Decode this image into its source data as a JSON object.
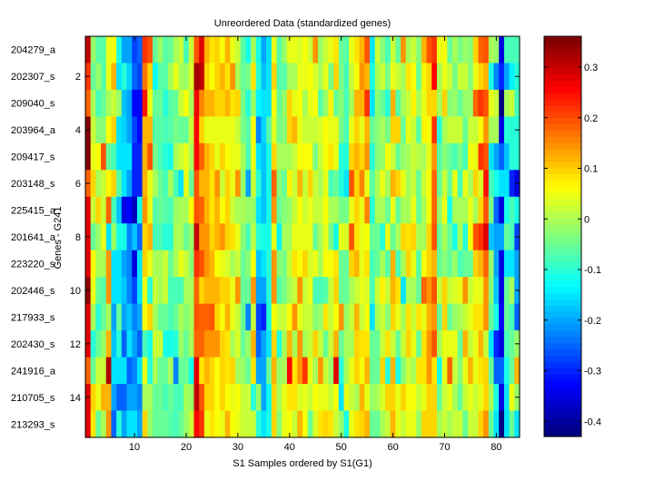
{
  "chart_data": {
    "type": "heatmap",
    "title": "Unreordered Data (standardized genes)",
    "xlabel": "S1 Samples ordered by S1(G1)",
    "ylabel": "Genes - G241",
    "xlim": [
      0.5,
      84.5
    ],
    "x_ticks": [
      10,
      20,
      30,
      40,
      50,
      60,
      70,
      80
    ],
    "y_ticks": [
      2,
      4,
      6,
      8,
      10,
      12,
      14
    ],
    "row_labels": [
      "204279_a",
      "202307_s",
      "209040_s",
      "203964_a",
      "209417_s",
      "203148_s",
      "225415_a",
      "201641_a",
      "223220_s",
      "202446_s",
      "217933_s",
      "202430_s",
      "241916_a",
      "210705_s",
      "213293_s"
    ],
    "colormap": "jet",
    "clim": [
      -0.43,
      0.361
    ],
    "colorbar_ticks": [
      0.3,
      0.2,
      0.1,
      0,
      -0.1,
      -0.2,
      -0.3,
      -0.4
    ],
    "colorbar_tick_labels": [
      "0.3",
      "0.2",
      "0.1",
      "0",
      "-0.1",
      "-0.2",
      "-0.3",
      "-0.4"
    ],
    "grid": false,
    "values": [
      [
        0.3,
        -0.02,
        -0.07,
        -0.07,
        0.04,
        0.06,
        -0.12,
        -0.2,
        -0.2,
        -0.28,
        -0.25,
        0.22,
        0.2,
        -0.05,
        -0.02,
        -0.07,
        -0.05,
        0,
        0.02,
        -0.08,
        0.02,
        0.2,
        0.28,
        0.12,
        0.08,
        0.1,
        0.06,
        0.12,
        0.04,
        0.02,
        -0.07,
        -0.12,
        0,
        -0.12,
        -0.2,
        -0.15,
        0.05,
        -0.06,
        -0.02,
        0.04,
        0.05,
        0.03,
        0.06,
        0.02,
        0.15,
        -0.02,
        0.02,
        0.05,
        0.08,
        -0.05,
        -0.06,
        0.04,
        0.08,
        0.12,
        0.2,
        -0.15,
        0.02,
        -0.03,
        -0.08,
        0.02,
        -0.05,
        0.14,
        0,
        0.02,
        -0.03,
        0.12,
        0.2,
        0.22,
        0.04,
        0.06,
        -0.05,
        0,
        -0.04,
        -0.02,
        -0.03,
        0.1,
        0.18,
        0.2,
        0,
        -0.02,
        -0.35,
        -0.08,
        -0.08,
        -0.08
      ],
      [
        0.22,
        -0.05,
        -0.02,
        -0.07,
        0.05,
        0.12,
        -0.15,
        -0.1,
        -0.17,
        -0.25,
        -0.28,
        0.17,
        0.1,
        -0.13,
        -0.06,
        -0.06,
        0,
        0.05,
        0,
        -0.02,
        0.03,
        0.33,
        0.3,
        0.1,
        0.06,
        0.1,
        0.12,
        0.08,
        0.15,
        0,
        -0.05,
        -0.04,
        0.08,
        -0.1,
        -0.18,
        -0.15,
        0.1,
        -0.06,
        -0.06,
        0,
        0,
        0.04,
        0.04,
        0.06,
        0.03,
        0,
        0.05,
        -0.04,
        0.1,
        -0.04,
        -0.08,
        0.02,
        0.06,
        0.14,
        0.12,
        -0.12,
        0,
        0.02,
        -0.04,
        0.05,
        0.02,
        0,
        0.08,
        0.06,
        -0.05,
        0.07,
        0.1,
        0.26,
        0,
        0.04,
        0.02,
        -0.04,
        0.02,
        0.02,
        -0.03,
        0.04,
        0.1,
        0.12,
        -0.12,
        -0.22,
        -0.3,
        -0.2,
        -0.14,
        -0.1
      ],
      [
        0.18,
        0,
        -0.08,
        -0.05,
        0,
        0.02,
        -0.02,
        -0.18,
        -0.2,
        -0.32,
        -0.32,
        0.24,
        0.05,
        -0.05,
        -0.05,
        -0.1,
        -0.06,
        -0.05,
        0.02,
        0.06,
        0,
        0.27,
        0.16,
        0.12,
        0.12,
        0.1,
        0.1,
        0.12,
        0.08,
        0.09,
        -0.04,
        -0.1,
        -0.02,
        -0.14,
        -0.15,
        -0.15,
        0.06,
        -0.05,
        -0.02,
        0.1,
        0.05,
        0.06,
        0,
        0.04,
        0.06,
        -0.06,
        -0.02,
        0.07,
        -0.05,
        -0.03,
        -0.08,
        0,
        0.12,
        0.12,
        0.22,
        -0.15,
        -0.03,
        -0.05,
        -0.1,
        0.12,
        -0.06,
        0,
        0.02,
        0.07,
        0,
        0.05,
        0.1,
        0.1,
        0,
        0.1,
        -0.03,
        -0.02,
        -0.05,
        -0.02,
        -0.02,
        0.18,
        0.22,
        0.2,
        0.04,
        0.02,
        -0.42,
        0,
        0.02,
        -0.08
      ],
      [
        0.36,
        0.02,
        -0.03,
        -0.03,
        0.06,
        0.1,
        -0.15,
        -0.17,
        -0.2,
        -0.28,
        -0.33,
        0.12,
        0.12,
        -0.06,
        -0.07,
        -0.08,
        -0.07,
        -0.04,
        -0.05,
        -0.05,
        0.02,
        0.25,
        0.1,
        0.04,
        0.04,
        0.05,
        0.04,
        0.04,
        0.05,
        0.02,
        -0.04,
        -0.06,
        0.06,
        -0.22,
        -0.17,
        -0.07,
        0.03,
        -0.04,
        -0.03,
        0.1,
        0.12,
        0.05,
        0.02,
        0.02,
        0.02,
        0.03,
        0.06,
        0.04,
        0.05,
        -0.04,
        -0.08,
        0.05,
        0.1,
        0.04,
        0.12,
        -0.05,
        -0.03,
        0,
        -0.04,
        0.1,
        0.1,
        -0.05,
        0.05,
        0.02,
        -0.06,
        0.07,
        0.06,
        0.22,
        -0.1,
        0,
        0.02,
        0.02,
        0.02,
        -0.05,
        0.02,
        0.02,
        0.06,
        0.14,
        0,
        0,
        -0.35,
        -0.1,
        -0.1,
        -0.1
      ],
      [
        0.35,
        0.04,
        0.06,
        0.2,
        -0.05,
        -0.08,
        -0.15,
        -0.15,
        -0.15,
        -0.3,
        -0.3,
        0.12,
        0.2,
        -0.04,
        -0.08,
        -0.1,
        -0.12,
        0,
        0.02,
        0.05,
        0,
        0.25,
        0.18,
        0.12,
        0.1,
        0.05,
        0.1,
        0.06,
        0.04,
        0.05,
        0,
        -0.08,
        0.05,
        -0.15,
        -0.18,
        -0.12,
        0.1,
        0,
        0,
        0,
        0.02,
        0.06,
        0.06,
        0.06,
        -0.04,
        0.02,
        0.06,
        0.08,
        0.05,
        -0.1,
        -0.1,
        0.1,
        0.12,
        0.1,
        0.15,
        -0.1,
        -0.03,
        -0.02,
        0.06,
        0.02,
        -0.05,
        -0.02,
        0,
        0.02,
        0.01,
        0,
        0.05,
        0.15,
        -0.06,
        -0.03,
        -0.05,
        -0.08,
        -0.04,
        -0.08,
        0.06,
        0.05,
        0.22,
        0.2,
        -0.15,
        -0.2,
        -0.25,
        -0.18,
        -0.1,
        -0.1
      ],
      [
        0.18,
        0.1,
        0,
        0.02,
        0.07,
        0.1,
        -0.07,
        -0.15,
        -0.2,
        -0.3,
        -0.3,
        0.12,
        0.05,
        0,
        -0.05,
        -0.08,
        0,
        -0.08,
        -0.15,
        0.04,
        -0.05,
        0.2,
        0.12,
        0.12,
        0.08,
        0.15,
        0.02,
        0.1,
        0.05,
        0.15,
        -0.02,
        -0.2,
        0.02,
        -0.1,
        -0.18,
        -0.12,
        0.18,
        -0.03,
        -0.05,
        0.07,
        0.02,
        0.12,
        0.02,
        0.1,
        0.02,
        0,
        0.05,
        -0.08,
        -0.05,
        -0.1,
        -0.15,
        0.2,
        0.1,
        0.16,
        0.05,
        -0.06,
        0,
        0.05,
        0,
        0.12,
        0.1,
        0.05,
        0,
        0.02,
        -0.05,
        0.02,
        0.06,
        0.18,
        -0.05,
        0.02,
        -0.05,
        0.05,
        -0.08,
        0.05,
        0,
        0.1,
        0.03,
        0.24,
        -0.08,
        -0.12,
        -0.15,
        -0.15,
        -0.3,
        -0.35
      ],
      [
        0.28,
        0.02,
        0.1,
        0.02,
        0.18,
        -0.08,
        -0.18,
        -0.35,
        -0.32,
        -0.38,
        -0.12,
        0.15,
        0.05,
        -0.07,
        -0.05,
        -0.06,
        -0.08,
        -0.02,
        0,
        0,
        0.06,
        0.2,
        0.18,
        0.12,
        0.08,
        0.12,
        0.06,
        0.1,
        0.02,
        0,
        0,
        -0.02,
        -0.02,
        -0.15,
        -0.18,
        -0.12,
        0.14,
        -0.05,
        -0.03,
        -0.02,
        0.02,
        0.06,
        0.02,
        0.04,
        0.02,
        0.02,
        0.06,
        0,
        0,
        -0.04,
        -0.04,
        0.05,
        0.1,
        0.05,
        0.16,
        -0.1,
        0,
        0,
        -0.05,
        0.04,
        -0.05,
        0,
        0,
        0.05,
        -0.05,
        0,
        0.06,
        0.18,
        -0.02,
        0.04,
        -0.12,
        0,
        0,
        0,
        0.05,
        0,
        0.1,
        0.2,
        -0.04,
        -0.25,
        -0.35,
        -0.12,
        -0.08,
        -0.12
      ],
      [
        0.28,
        -0.05,
        -0.02,
        0.04,
        -0.15,
        -0.02,
        -0.12,
        -0.12,
        -0.22,
        -0.18,
        -0.25,
        0.1,
        0.12,
        -0.08,
        -0.08,
        -0.1,
        -0.1,
        0,
        0,
        -0.05,
        -0.02,
        0.3,
        0.14,
        0.15,
        0.1,
        0.12,
        0.14,
        0.1,
        0.08,
        0.04,
        -0.03,
        -0.08,
        0.01,
        -0.1,
        -0.12,
        -0.12,
        0.04,
        -0.14,
        0,
        0,
        0.04,
        0.04,
        0.05,
        0.05,
        -0.05,
        0,
        0.05,
        -0.04,
        -0.12,
        0.04,
        0.03,
        0.2,
        0.08,
        0.04,
        0.06,
        -0.05,
        -0.05,
        -0.1,
        0.05,
        -0.05,
        0,
        0.1,
        0.08,
        0.1,
        0,
        0,
        0.1,
        0.2,
        -0.05,
        0,
        -0.05,
        -0.12,
        0,
        -0.1,
        0.06,
        0.2,
        0.22,
        0.28,
        -0.18,
        -0.2,
        -0.2,
        -0.05,
        -0.08,
        -0.28
      ],
      [
        0.28,
        0.06,
        0,
        0,
        0.15,
        -0.15,
        -0.15,
        -0.2,
        -0.22,
        -0.35,
        -0.15,
        0.1,
        0.05,
        0,
        0,
        0.02,
        -0.05,
        0,
        0.05,
        0.02,
        -0.03,
        0.22,
        0.2,
        0.15,
        0.12,
        0.06,
        0.05,
        0.03,
        0,
        0.02,
        -0.05,
        -0.03,
        0.06,
        -0.18,
        -0.15,
        -0.1,
        0.14,
        -0.03,
        -0.04,
        0.02,
        0.08,
        0.06,
        0.1,
        0.03,
        0.04,
        0,
        0.06,
        0.06,
        0.08,
        -0.05,
        -0.05,
        0.1,
        0.12,
        0.05,
        0.08,
        -0.08,
        -0.05,
        0,
        -0.06,
        0.12,
        -0.08,
        0,
        0.1,
        0.05,
        -0.06,
        0.06,
        0.1,
        0.12,
        -0.05,
        -0.03,
        -0.05,
        -0.02,
        -0.08,
        -0.05,
        -0.05,
        0.1,
        0.12,
        0.18,
        -0.02,
        -0.2,
        -0.35,
        -0.15,
        -0.15,
        -0.2
      ],
      [
        0.34,
        0.05,
        -0.05,
        -0.07,
        0.15,
        -0.15,
        -0.15,
        -0.18,
        -0.22,
        -0.28,
        -0.15,
        0.05,
        -0.1,
        0.02,
        0,
        0.02,
        -0.08,
        -0.08,
        -0.08,
        0,
        0,
        0.18,
        0.1,
        0.12,
        0.12,
        0.12,
        0.1,
        0.1,
        0.05,
        0.15,
        -0.05,
        -0.05,
        0.15,
        -0.2,
        -0.2,
        -0.1,
        0.14,
        -0.07,
        -0.04,
        0,
        0.02,
        0.14,
        0.02,
        0.05,
        -0.08,
        -0.08,
        -0.06,
        0.02,
        0.1,
        -0.05,
        -0.05,
        0,
        0.02,
        0.05,
        0.03,
        -0.08,
        0.02,
        0.07,
        0.02,
        0.12,
        0.08,
        -0.15,
        0,
        0,
        -0.05,
        0.18,
        0.14,
        0.2,
        0.02,
        0.1,
        0.02,
        0.03,
        0.05,
        0.14,
        0.02,
        0.05,
        0.05,
        0.14,
        -0.03,
        -0.18,
        -0.35,
        -0.05,
        0,
        -0.2
      ],
      [
        0.28,
        0,
        -0.1,
        -0.05,
        0,
        -0.2,
        -0.05,
        -0.2,
        -0.18,
        -0.22,
        -0.2,
        0.06,
        0.1,
        0,
        -0.05,
        -0.05,
        -0.08,
        -0.05,
        0,
        -0.03,
        0,
        0.2,
        0.18,
        0.18,
        0.2,
        0.1,
        0.06,
        0.12,
        0.05,
        0.02,
        -0.05,
        -0.22,
        0.02,
        -0.28,
        -0.3,
        -0.1,
        0.06,
        0.02,
        0.02,
        0.06,
        0.15,
        0.05,
        0.02,
        0.02,
        -0.03,
        -0.02,
        0.08,
        0.02,
        0.06,
        0.15,
        -0.02,
        0.02,
        0.12,
        0.02,
        0.06,
        -0.15,
        0,
        0.02,
        -0.03,
        0.1,
        0.05,
        0,
        0.08,
        0.02,
        0.08,
        0.05,
        0.12,
        0.15,
        -0.05,
        0.1,
        -0.05,
        -0.02,
        0,
        0.02,
        0.05,
        0.08,
        0.08,
        0.15,
        -0.05,
        -0.12,
        -0.32,
        -0.05,
        -0.08,
        -0.25
      ],
      [
        0.28,
        -0.1,
        -0.05,
        -0.02,
        0.12,
        -0.18,
        -0.1,
        -0.25,
        -0.15,
        -0.2,
        -0.25,
        -0.08,
        -0.12,
        0.02,
        0.02,
        -0.12,
        -0.12,
        -0.1,
        -0.02,
        -0.05,
        0,
        0.18,
        0.18,
        0.15,
        0.15,
        0.15,
        0.1,
        0.08,
        0,
        0.03,
        -0.05,
        -0.02,
        0.12,
        -0.25,
        -0.2,
        -0.15,
        0.1,
        -0.1,
        0,
        0.12,
        0,
        0.15,
        0,
        0.02,
        0.1,
        0.02,
        -0.05,
        0.02,
        0.12,
        -0.05,
        0,
        0,
        0.1,
        0.08,
        0.08,
        -0.05,
        -0.05,
        0.02,
        0.08,
        0.02,
        -0.05,
        0.02,
        0.1,
        0.05,
        -0.05,
        0.08,
        0.15,
        0.2,
        0,
        0.05,
        0.05,
        0.05,
        -0.05,
        0.12,
        0.02,
        0.05,
        0.12,
        0.02,
        -0.15,
        -0.3,
        -0.35,
        -0.08,
        -0.05,
        -0.02
      ],
      [
        0.18,
        -0.05,
        0.02,
        0.02,
        0.32,
        -0.15,
        -0.15,
        -0.15,
        -0.25,
        -0.22,
        -0.15,
        0.05,
        -0.1,
        0,
        -0.05,
        -0.05,
        0,
        -0.22,
        -0.05,
        -0.05,
        -0.12,
        0.28,
        0.08,
        0.12,
        0.1,
        0.06,
        0.1,
        0.08,
        0.1,
        0,
        -0.02,
        -0.05,
        0.08,
        -0.2,
        -0.2,
        -0.05,
        0.12,
        -0.02,
        0,
        0.26,
        0.08,
        0.15,
        0.22,
        0.05,
        0,
        0.15,
        0.02,
        -0.02,
        0.28,
        -0.1,
        0,
        0.05,
        0.1,
        0.06,
        0.12,
        -0.05,
        -0.05,
        0.1,
        -0.1,
        0.12,
        -0.12,
        -0.03,
        0.02,
        0,
        0.08,
        0.08,
        0.15,
        0.08,
        -0.12,
        0.05,
        0.18,
        0.02,
        -0.03,
        0.05,
        0.12,
        0.05,
        0.08,
        0.1,
        -0.05,
        -0.25,
        -0.25,
        -0.12,
        -0.05,
        0.12
      ],
      [
        0.28,
        0.1,
        0.05,
        0.12,
        0.12,
        -0.2,
        -0.25,
        -0.25,
        -0.2,
        -0.2,
        -0.22,
        0,
        0,
        -0.05,
        -0.05,
        -0.08,
        -0.05,
        -0.08,
        -0.08,
        0,
        -0.02,
        0.3,
        0.2,
        0.1,
        0.1,
        0.06,
        0.1,
        0.06,
        0.04,
        0.06,
        0.02,
        0.02,
        -0.1,
        -0.02,
        -0.2,
        -0.13,
        0.1,
        0,
        0.05,
        0.08,
        0.08,
        0.03,
        0.05,
        0.02,
        0.06,
        0.04,
        0.05,
        0.02,
        0.06,
        -0.15,
        0.05,
        0.02,
        0,
        0.12,
        0.05,
        -0.02,
        0,
        0.03,
        0.1,
        0.1,
        0.05,
        0.1,
        0.06,
        0.06,
        0.02,
        0.05,
        0.1,
        0.1,
        -0.05,
        0.02,
        0.05,
        0,
        -0.05,
        0.02,
        0.05,
        0.02,
        0.05,
        0.1,
        0,
        -0.12,
        -0.35,
        -0.15,
        0.05,
        -0.02
      ],
      [
        0.28,
        0.08,
        -0.05,
        0,
        0.15,
        -0.25,
        -0.1,
        -0.2,
        -0.15,
        -0.15,
        -0.2,
        0.1,
        -0.02,
        -0.05,
        -0.05,
        -0.05,
        -0.06,
        -0.08,
        -0.05,
        -0.02,
        0.02,
        0.25,
        0.22,
        0.05,
        0.08,
        0.06,
        0.04,
        0.12,
        0.06,
        0.05,
        0.02,
        0.02,
        0.02,
        -0.1,
        -0.15,
        -0.12,
        0.1,
        -0.03,
        0.05,
        0.06,
        0.02,
        0.12,
        0.06,
        -0.05,
        0.03,
        0.08,
        0.1,
        0.08,
        0.02,
        -0.02,
        -0.12,
        0.05,
        0.08,
        0.1,
        0.12,
        -0.05,
        -0.05,
        0,
        0.02,
        0.12,
        0.05,
        0.02,
        0.05,
        0.04,
        -0.02,
        0.1,
        0.1,
        0.1,
        0,
        0.02,
        0,
        0.02,
        0.02,
        -0.05,
        0.02,
        0.02,
        0.1,
        0.15,
        -0.05,
        -0.15,
        -0.42,
        -0.15,
        -0.05,
        -0.15
      ]
    ]
  }
}
